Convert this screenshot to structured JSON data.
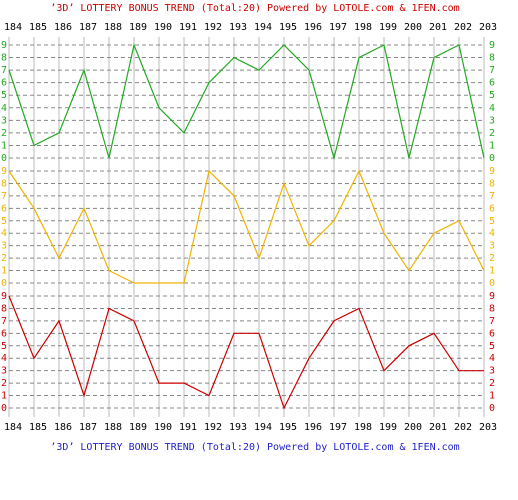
{
  "chart_data": [
    {
      "type": "line",
      "title": "’3D’ LOTTERY BONUS TREND (Total:20)  Powered by LOTOLE.com & 1FEN.com",
      "categories": [
        "184",
        "185",
        "186",
        "187",
        "188",
        "189",
        "190",
        "191",
        "192",
        "193",
        "194",
        "195",
        "196",
        "197",
        "198",
        "199",
        "200",
        "201",
        "202",
        "203"
      ],
      "color": "#22aa22",
      "values": [
        7,
        1,
        2,
        7,
        0,
        9,
        4,
        2,
        6,
        8,
        7,
        9,
        7,
        0,
        8,
        9,
        0,
        8,
        9,
        0
      ],
      "ylim": [
        0,
        9
      ],
      "yticks": [
        0,
        1,
        2,
        3,
        4,
        5,
        6,
        7,
        8,
        9
      ],
      "grid": true
    },
    {
      "type": "line",
      "categories": [
        "184",
        "185",
        "186",
        "187",
        "188",
        "189",
        "190",
        "191",
        "192",
        "193",
        "194",
        "195",
        "196",
        "197",
        "198",
        "199",
        "200",
        "201",
        "202",
        "203"
      ],
      "color": "#f0b400",
      "values": [
        9,
        6,
        2,
        6,
        1,
        0,
        0,
        0,
        9,
        7,
        2,
        8,
        3,
        5,
        9,
        4,
        1,
        4,
        5,
        1
      ],
      "ylim": [
        0,
        9
      ],
      "yticks": [
        0,
        1,
        2,
        3,
        4,
        5,
        6,
        7,
        8,
        9
      ],
      "grid": true
    },
    {
      "type": "line",
      "categories": [
        "184",
        "185",
        "186",
        "187",
        "188",
        "189",
        "190",
        "191",
        "192",
        "193",
        "194",
        "195",
        "196",
        "197",
        "198",
        "199",
        "200",
        "201",
        "202",
        "203"
      ],
      "color": "#cc0000",
      "values": [
        9,
        4,
        7,
        1,
        8,
        7,
        2,
        2,
        1,
        6,
        6,
        0,
        4,
        7,
        8,
        3,
        5,
        6,
        3,
        3
      ],
      "ylim": [
        0,
        9
      ],
      "yticks": [
        0,
        1,
        2,
        3,
        4,
        5,
        6,
        7,
        8,
        9
      ],
      "grid": true
    }
  ]
}
